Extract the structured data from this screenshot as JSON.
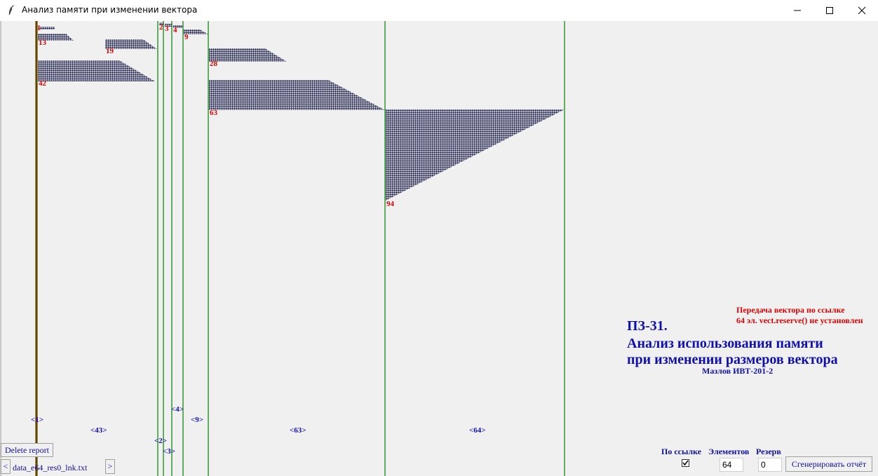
{
  "window": {
    "title": "Анализ памяти при изменении вектора",
    "icon": "feather-icon",
    "controls": [
      "minimize-icon",
      "maximize-icon",
      "close-icon"
    ]
  },
  "colors": {
    "accent_red": "#e00000",
    "line_green": "#008000",
    "blob_navy": "#1b1f4a",
    "text_blue": "#1010b0",
    "background": "#f0f0f0"
  },
  "chart_data": {
    "type": "memory-trace",
    "top_labels": [
      "1",
      "13",
      "19",
      "42",
      "2",
      "3",
      "4",
      "9",
      "28",
      "63",
      "94"
    ],
    "bottom_labels": [
      "<1>",
      "<43>",
      "<2>",
      "<3>",
      "<4>",
      "<9>",
      "<63>",
      "<64>"
    ]
  },
  "info": {
    "mode_line1": "Передача вектора по ссылке",
    "mode_line2": "64 эл. vect.reserve() не установлен",
    "heading1": "ПЗ-31.",
    "heading2": "Анализ использования памяти",
    "heading3": "при изменении размеров вектора",
    "author": "Мазлов ИВТ-201-2"
  },
  "controls": {
    "delete_label": "Delete report",
    "prev_label": "<",
    "next_label": ">",
    "file_name": "data_e64_res0_lnk.txt",
    "by_ref_label": "По ссылке",
    "by_ref_checked": true,
    "elements_label": "Элементов",
    "elements_value": "64",
    "reserve_label": "Резерв",
    "reserve_value": "0",
    "generate_label": "Сгенерировать отчёт"
  }
}
